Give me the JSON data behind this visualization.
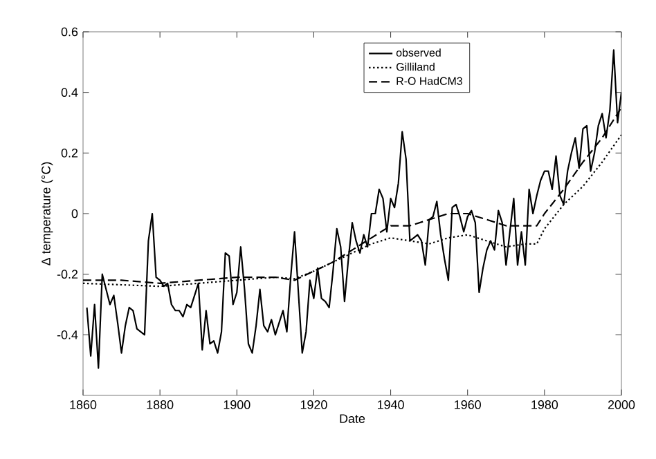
{
  "chart_data": {
    "type": "line",
    "xlabel": "Date",
    "ylabel": "Δ temperature (°C)",
    "xlim": [
      1860,
      2000
    ],
    "xticks": [
      1860,
      1880,
      1900,
      1920,
      1940,
      1960,
      1980,
      2000
    ],
    "ylim": [
      -0.6,
      0.6
    ],
    "yticks": [
      -0.4,
      -0.2,
      0,
      0.2,
      0.4,
      0.6
    ],
    "grid": false,
    "legend": "top right",
    "marker": "none",
    "series": [
      {
        "name": "observed",
        "color": "#000000",
        "line_style": "solid",
        "x": [
          1861,
          1862,
          1863,
          1864,
          1865,
          1866,
          1867,
          1868,
          1869,
          1870,
          1871,
          1872,
          1873,
          1874,
          1875,
          1876,
          1877,
          1878,
          1879,
          1880,
          1881,
          1882,
          1883,
          1884,
          1885,
          1886,
          1887,
          1888,
          1889,
          1890,
          1891,
          1892,
          1893,
          1894,
          1895,
          1896,
          1897,
          1898,
          1899,
          1900,
          1901,
          1902,
          1903,
          1904,
          1905,
          1906,
          1907,
          1908,
          1909,
          1910,
          1911,
          1912,
          1913,
          1914,
          1915,
          1916,
          1917,
          1918,
          1919,
          1920,
          1921,
          1922,
          1923,
          1924,
          1925,
          1926,
          1927,
          1928,
          1929,
          1930,
          1931,
          1932,
          1933,
          1934,
          1935,
          1936,
          1937,
          1938,
          1939,
          1940,
          1941,
          1942,
          1943,
          1944,
          1945,
          1946,
          1947,
          1948,
          1949,
          1950,
          1951,
          1952,
          1953,
          1954,
          1955,
          1956,
          1957,
          1958,
          1959,
          1960,
          1961,
          1962,
          1963,
          1964,
          1965,
          1966,
          1967,
          1968,
          1969,
          1970,
          1971,
          1972,
          1973,
          1974,
          1975,
          1976,
          1977,
          1978,
          1979,
          1980,
          1981,
          1982,
          1983,
          1984,
          1985,
          1986,
          1987,
          1988,
          1989,
          1990,
          1991,
          1992,
          1993,
          1994,
          1995,
          1996,
          1997,
          1998,
          1999,
          2000
        ],
        "values": [
          -0.31,
          -0.47,
          -0.3,
          -0.51,
          -0.2,
          -0.25,
          -0.3,
          -0.27,
          -0.36,
          -0.46,
          -0.37,
          -0.31,
          -0.32,
          -0.38,
          -0.39,
          -0.4,
          -0.09,
          0.0,
          -0.21,
          -0.22,
          -0.24,
          -0.23,
          -0.3,
          -0.32,
          -0.32,
          -0.34,
          -0.3,
          -0.31,
          -0.27,
          -0.23,
          -0.45,
          -0.32,
          -0.43,
          -0.42,
          -0.46,
          -0.39,
          -0.13,
          -0.14,
          -0.3,
          -0.26,
          -0.11,
          -0.25,
          -0.43,
          -0.46,
          -0.37,
          -0.25,
          -0.37,
          -0.39,
          -0.35,
          -0.4,
          -0.36,
          -0.32,
          -0.39,
          -0.21,
          -0.06,
          -0.26,
          -0.46,
          -0.39,
          -0.22,
          -0.28,
          -0.18,
          -0.28,
          -0.29,
          -0.31,
          -0.19,
          -0.05,
          -0.11,
          -0.29,
          -0.15,
          -0.03,
          -0.09,
          -0.13,
          -0.07,
          -0.11,
          0.0,
          0.0,
          0.08,
          0.05,
          -0.06,
          0.05,
          0.02,
          0.1,
          0.27,
          0.18,
          -0.09,
          -0.08,
          -0.07,
          -0.09,
          -0.17,
          -0.02,
          -0.01,
          0.04,
          -0.07,
          -0.15,
          -0.22,
          0.02,
          0.03,
          -0.01,
          -0.06,
          -0.01,
          0.01,
          -0.03,
          -0.26,
          -0.18,
          -0.12,
          -0.09,
          -0.12,
          0.01,
          -0.03,
          -0.17,
          -0.06,
          0.05,
          -0.17,
          -0.06,
          -0.17,
          0.08,
          0.0,
          0.06,
          0.11,
          0.14,
          0.14,
          0.08,
          0.19,
          0.06,
          0.03,
          0.14,
          0.2,
          0.25,
          0.15,
          0.28,
          0.29,
          0.14,
          0.2,
          0.29,
          0.33,
          0.25,
          0.34,
          0.54,
          0.3,
          0.4
        ]
      },
      {
        "name": "Gilliland",
        "color": "#000000",
        "line_style": "dotted",
        "x": [
          1860,
          1870,
          1880,
          1890,
          1900,
          1910,
          1915,
          1920,
          1925,
          1930,
          1935,
          1940,
          1945,
          1950,
          1955,
          1960,
          1965,
          1970,
          1975,
          1978,
          1980,
          1985,
          1990,
          1995,
          2000
        ],
        "values": [
          -0.23,
          -0.235,
          -0.24,
          -0.23,
          -0.22,
          -0.21,
          -0.215,
          -0.19,
          -0.16,
          -0.13,
          -0.1,
          -0.08,
          -0.09,
          -0.1,
          -0.08,
          -0.07,
          -0.09,
          -0.11,
          -0.1,
          -0.1,
          -0.05,
          0.03,
          0.09,
          0.17,
          0.26
        ]
      },
      {
        "name": "R-O HadCM3",
        "color": "#000000",
        "line_style": "dashed",
        "x": [
          1860,
          1870,
          1880,
          1890,
          1900,
          1910,
          1915,
          1920,
          1925,
          1930,
          1935,
          1940,
          1945,
          1950,
          1955,
          1960,
          1965,
          1970,
          1975,
          1978,
          1980,
          1985,
          1990,
          1995,
          2000
        ],
        "values": [
          -0.22,
          -0.22,
          -0.23,
          -0.22,
          -0.21,
          -0.21,
          -0.22,
          -0.19,
          -0.16,
          -0.12,
          -0.08,
          -0.04,
          -0.04,
          -0.02,
          0.0,
          0.0,
          -0.02,
          -0.04,
          -0.04,
          -0.04,
          0.0,
          0.08,
          0.17,
          0.25,
          0.35
        ]
      }
    ]
  }
}
